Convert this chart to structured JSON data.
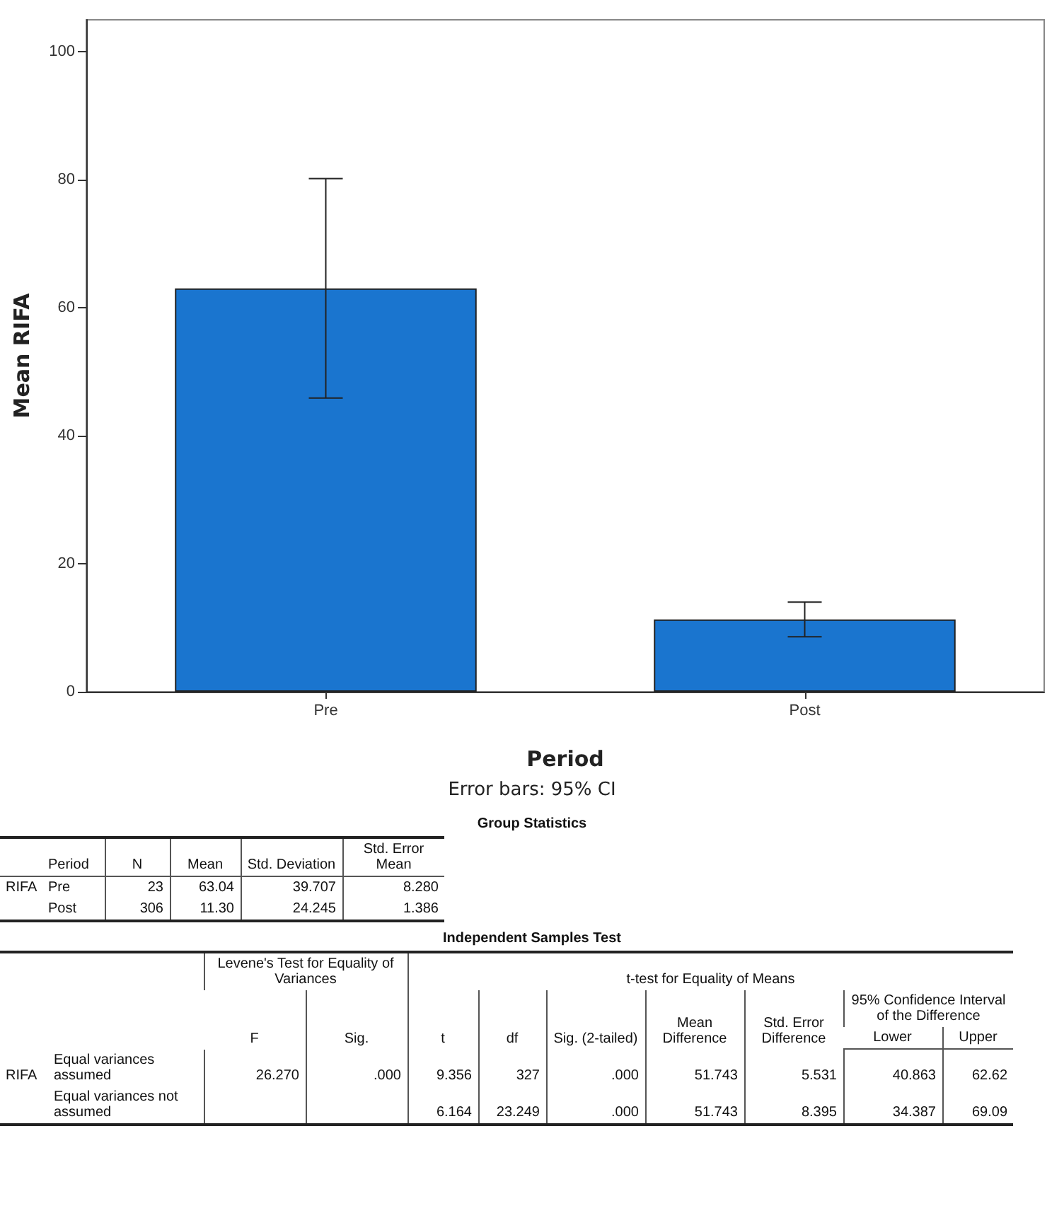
{
  "chart_data": [
    {
      "type": "bar",
      "xlabel": "Period",
      "ylabel": "Mean RIFA",
      "categories": [
        "Pre",
        "Post"
      ],
      "values": [
        63.04,
        11.3
      ],
      "color": "#1a75cf",
      "errors": [
        [
          45.9,
          80.2
        ],
        [
          8.6,
          14.0
        ]
      ],
      "ylim": [
        0,
        105
      ],
      "yticks": [
        0,
        20,
        40,
        60,
        80,
        100
      ],
      "grid": false,
      "annotations": [
        "Error bars: 95% CI"
      ]
    },
    {
      "type": "other",
      "title": "Group Statistics",
      "annotations": [
        "Period",
        "N",
        "Mean",
        "Std. Deviation",
        "Std. Error Mean",
        "RIFA",
        "Pre",
        "23",
        "63.04",
        "39.707",
        "8.280",
        "Post",
        "306",
        "11.30",
        "24.245",
        "1.386"
      ]
    },
    {
      "type": "other",
      "title": "Independent Samples Test",
      "annotations": [
        "Levene's Test for Equality of Variances",
        "t-test for Equality of Means",
        "F",
        "Sig.",
        "t",
        "df",
        "Sig. (2-tailed)",
        "Mean Difference",
        "Std. Error Difference",
        "95% Confidence Interval of the Difference",
        "Lower",
        "Upper",
        "RIFA",
        "Equal variances assumed",
        "26.270",
        ".000",
        "9.356",
        "327",
        ".000",
        "51.743",
        "5.531",
        "40.863",
        "62.62",
        "Equal variances not assumed",
        "6.164",
        "23.249",
        ".000",
        "51.743",
        "8.395",
        "34.387",
        "69.09"
      ]
    }
  ]
}
